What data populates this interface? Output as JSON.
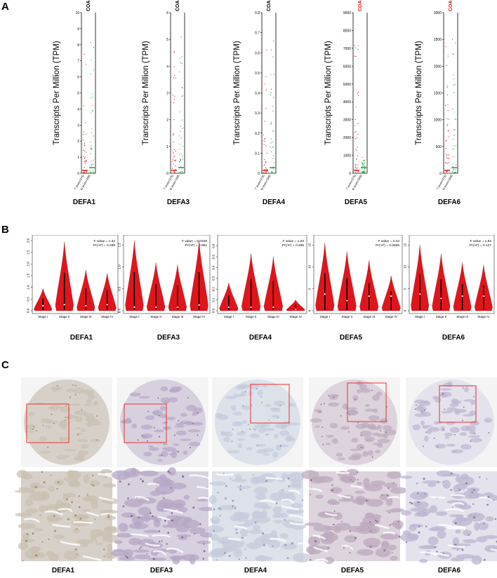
{
  "panels": {
    "a": "A",
    "b": "B",
    "c": "C"
  },
  "genes": [
    "DEFA1",
    "DEFA3",
    "DEFA4",
    "DEFA5",
    "DEFA6"
  ],
  "colors": {
    "tumor": "#e31a1c",
    "normal": "#1b9e3a",
    "violin": "#e0151b",
    "frame": "#000000",
    "roi": "#e8413d"
  },
  "panel_a": {
    "ylabel": "Transcripts Per Million (TPM)",
    "dataset": "COAD",
    "groups": [
      "T (num=275)",
      "N (num=349)"
    ],
    "plots": [
      {
        "gene": "DEFA1",
        "yticks": [
          "0",
          "1",
          "2",
          "3",
          "4",
          "5",
          "6",
          "7",
          "8",
          "9",
          "10"
        ],
        "ymax": 10,
        "dataset_color": "#000000"
      },
      {
        "gene": "DEFA3",
        "yticks": [
          "0",
          "1",
          "2",
          "3",
          "4",
          "5",
          "6"
        ],
        "ymax": 6,
        "dataset_color": "#000000"
      },
      {
        "gene": "DEFA4",
        "yticks": [
          "0",
          "0.1",
          "0.2",
          "0.3",
          "0.4",
          "0.5",
          "0.6",
          "0.7",
          "0.8"
        ],
        "ymax": 0.8,
        "dataset_color": "#000000"
      },
      {
        "gene": "DEFA5",
        "yticks": [
          "0",
          "1000",
          "2000",
          "3000",
          "4000",
          "5000",
          "6000",
          "7000",
          "8000",
          "9000"
        ],
        "ymax": 9000,
        "dataset_color": "#e31a1c"
      },
      {
        "gene": "DEFA6",
        "yticks": [
          "0",
          "500",
          "1000",
          "1500",
          "2000",
          "2500",
          "3000"
        ],
        "ymax": 3000,
        "dataset_color": "#e31a1c"
      }
    ]
  },
  "panel_b": {
    "stages": [
      "Stage I",
      "Stage II",
      "Stage III",
      "Stage IV"
    ],
    "plots": [
      {
        "gene": "DEFA1",
        "f_text": "F value = 1.32",
        "p_text": "Pr(>F) = 0.269",
        "yticks": [
          "0.0",
          "0.5",
          "1.0",
          "1.5",
          "2.0",
          "2.5",
          "3.0"
        ],
        "ymax": 3.0,
        "violins": [
          {
            "top": 0.95,
            "median": 0.15
          },
          {
            "top": 2.95,
            "median": 0.2
          },
          {
            "top": 1.75,
            "median": 0.15
          },
          {
            "top": 1.6,
            "median": 0.2
          }
        ]
      },
      {
        "gene": "DEFA3",
        "f_text": "F value = 0.0348",
        "p_text": "Pr(>F) = 0.991",
        "yticks": [
          "0.0",
          "0.5",
          "1.0",
          "1.5"
        ],
        "ymax": 1.6,
        "violins": [
          {
            "top": 1.6,
            "median": 0.05
          },
          {
            "top": 1.1,
            "median": 0.05
          },
          {
            "top": 1.05,
            "median": 0.05
          },
          {
            "top": 1.6,
            "median": 0.1
          }
        ]
      },
      {
        "gene": "DEFA4",
        "f_text": "F value = 1.26",
        "p_text": "Pr(>F) = 0.285",
        "yticks": [
          "0.0",
          "0.1",
          "0.2",
          "0.3",
          "0.4",
          "0.5",
          "0.6"
        ],
        "ymax": 0.65,
        "violins": [
          {
            "top": 0.26,
            "median": 0.02
          },
          {
            "top": 0.53,
            "median": 0.02
          },
          {
            "top": 0.5,
            "median": 0.02
          },
          {
            "top": 0.1,
            "median": 0.0
          }
        ]
      },
      {
        "gene": "DEFA5",
        "f_text": "F value = 2.43",
        "p_text": "Pr(>F) = 0.0656",
        "yticks": [
          "0",
          "5",
          "10",
          "15"
        ],
        "ymax": 16,
        "violins": [
          {
            "top": 15.5,
            "median": 3.5
          },
          {
            "top": 13.5,
            "median": 2.0
          },
          {
            "top": 11.5,
            "median": 3.0
          },
          {
            "top": 8.0,
            "median": 3.0
          }
        ]
      },
      {
        "gene": "DEFA6",
        "f_text": "F value = 1.92",
        "p_text": "Pr(>F) = 0.127",
        "yticks": [
          "0",
          "5",
          "10",
          "15"
        ],
        "ymax": 16,
        "violins": [
          {
            "top": 15.0,
            "median": 3.5
          },
          {
            "top": 13.0,
            "median": 2.5
          },
          {
            "top": 11.0,
            "median": 3.0
          },
          {
            "top": 10.5,
            "median": 3.0
          }
        ]
      }
    ]
  },
  "panel_c": {
    "samples": [
      {
        "gene": "DEFA1",
        "stain": "#a0825e",
        "base": "#d6d0c8",
        "tissue": "#c9c0b2"
      },
      {
        "gene": "DEFA3",
        "stain": "#7c5c8a",
        "base": "#d7d0df",
        "tissue": "#b6a7c6"
      },
      {
        "gene": "DEFA4",
        "stain": "#8796b8",
        "base": "#dde1ea",
        "tissue": "#c5cbdc"
      },
      {
        "gene": "DEFA5",
        "stain": "#8a6e8a",
        "base": "#ddd3dc",
        "tissue": "#bca9bd"
      },
      {
        "gene": "DEFA6",
        "stain": "#7d76a3",
        "base": "#e4e2ec",
        "tissue": "#bdb6d2"
      }
    ]
  }
}
